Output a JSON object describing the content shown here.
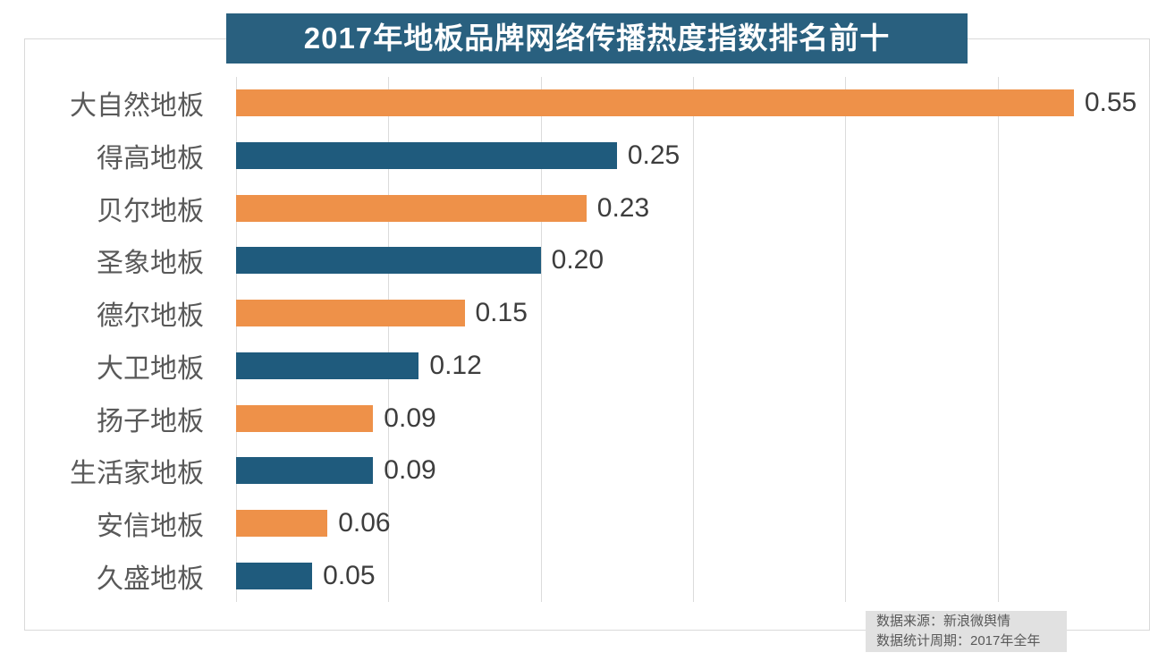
{
  "title": "2017年地板品牌网络传播热度指数排名前十",
  "chart_data": {
    "type": "bar",
    "orientation": "horizontal",
    "title": "2017年地板品牌网络传播热度指数排名前十",
    "categories": [
      "大自然地板",
      "得高地板",
      "贝尔地板",
      "圣象地板",
      "德尔地板",
      "大卫地板",
      "扬子地板",
      "生活家地板",
      "安信地板",
      "久盛地板"
    ],
    "values": [
      0.55,
      0.25,
      0.23,
      0.2,
      0.15,
      0.12,
      0.09,
      0.09,
      0.06,
      0.05
    ],
    "value_labels": [
      "0.55",
      "0.25",
      "0.23",
      "0.20",
      "0.15",
      "0.12",
      "0.09",
      "0.09",
      "0.06",
      "0.05"
    ],
    "xlabel": "",
    "ylabel": "",
    "xlim": [
      0,
      0.6
    ],
    "tick_interval": 0.1,
    "gridlines": "vertical",
    "legend_position": "none",
    "bar_color_pattern": [
      "#EE9149",
      "#1F5B7D"
    ]
  },
  "footer": {
    "source": "数据来源：新浪微舆情",
    "period": "数据统计周期：2017年全年"
  },
  "colors": {
    "title_bg": "#29607F",
    "title_text": "#FFFFFF",
    "bar_orange": "#EE9149",
    "bar_teal": "#1F5B7D",
    "grid_line": "#DBDBDB",
    "frame_border": "#D9D9D9",
    "category_label": "#595959",
    "value_label": "#3D3D3D",
    "footer_bg": "#E1E1E1",
    "footer_text": "#595959"
  }
}
